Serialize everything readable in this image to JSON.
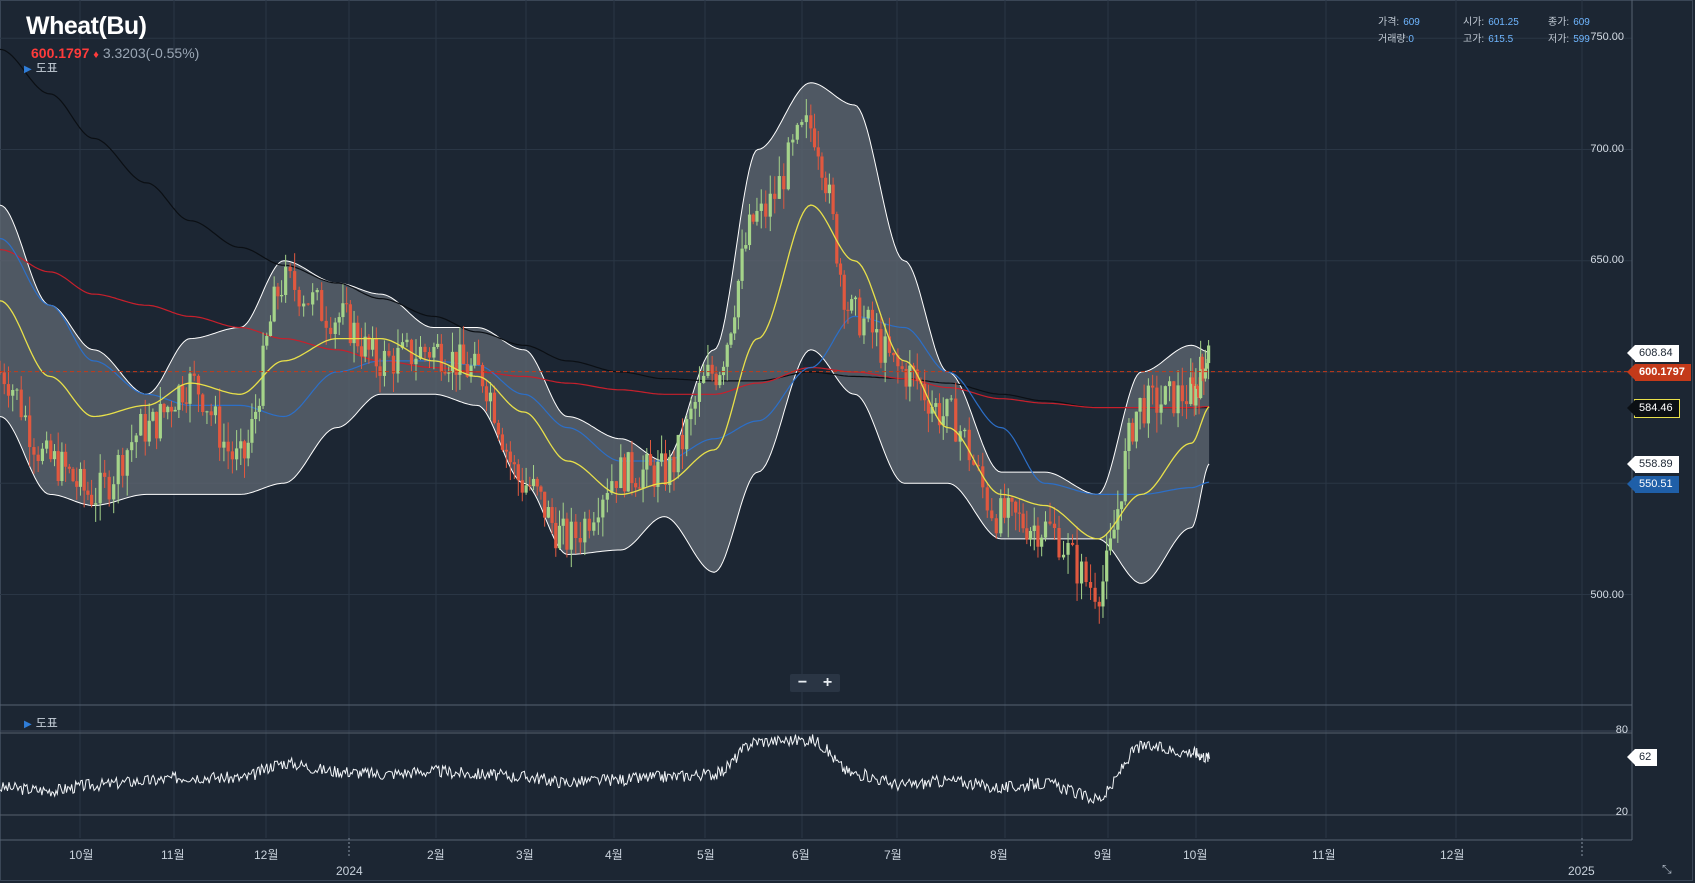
{
  "header": {
    "title": "Wheat(Bu)",
    "price": "600.1797",
    "change_arrow": "♦",
    "change": "3.3203(-0.55%)",
    "toggle_label": "도표"
  },
  "ohlc": {
    "price_label": "가격:",
    "price": "609",
    "open_label": "시가:",
    "open": "601.25",
    "close_label": "종가:",
    "close": "609",
    "volume_label": "거래량:",
    "volume": "0",
    "high_label": "고가:",
    "high": "615.5",
    "low_label": "저가:",
    "low": "599"
  },
  "price_axis": {
    "ticks": [
      "750.00",
      "700.00",
      "650.00",
      "500.00"
    ],
    "tags": {
      "band_upper": "608.84",
      "last_price": "600.1797",
      "ma_long": "584.46",
      "band_lower": "558.89",
      "ma_mid": "550.51"
    }
  },
  "indicator": {
    "toggle_label": "도표",
    "ticks": [
      "80",
      "20"
    ],
    "value": "62"
  },
  "time_axis": {
    "labels": [
      "10월",
      "11월",
      "12월",
      "2024",
      "2월",
      "3월",
      "4월",
      "5월",
      "6월",
      "7월",
      "8월",
      "9월",
      "10월",
      "11월",
      "12월",
      "2025"
    ]
  },
  "zoom": {
    "minus": "−",
    "plus": "+"
  },
  "colors": {
    "background": "#1c2633",
    "up_candle": "#a5d48a",
    "down_candle": "#e1583f",
    "band_fill": "#5d656f",
    "band_edge": "#ffffff",
    "ma_fast": "#e8e04a",
    "ma_blue": "#2c6fc8",
    "ma_red": "#c8202c",
    "ma_black": "#0b0f14",
    "last_price": "#c43a1a"
  },
  "chart_data": {
    "type": "candlestick",
    "title": "Wheat(Bu)",
    "x_range": [
      "2023-09",
      "2025-01"
    ],
    "ylim": [
      480,
      760
    ],
    "grid": true,
    "dates": [
      "2023-09-15",
      "2023-10-01",
      "2023-10-15",
      "2023-11-01",
      "2023-11-15",
      "2023-12-01",
      "2023-12-15",
      "2024-01-01",
      "2024-01-15",
      "2024-02-01",
      "2024-02-15",
      "2024-03-01",
      "2024-03-15",
      "2024-04-01",
      "2024-04-15",
      "2024-05-01",
      "2024-05-15",
      "2024-06-01",
      "2024-06-15",
      "2024-07-01",
      "2024-07-15",
      "2024-08-01",
      "2024-08-15",
      "2024-09-01",
      "2024-09-15",
      "2024-10-01",
      "2024-10-07"
    ],
    "close": [
      600,
      560,
      545,
      575,
      595,
      560,
      640,
      625,
      605,
      610,
      600,
      550,
      525,
      555,
      555,
      600,
      670,
      710,
      625,
      600,
      580,
      535,
      530,
      503,
      585,
      590,
      609
    ],
    "bollinger_upper": [
      675,
      630,
      610,
      590,
      615,
      620,
      650,
      640,
      635,
      620,
      620,
      610,
      580,
      570,
      560,
      610,
      700,
      730,
      720,
      650,
      600,
      555,
      555,
      545,
      600,
      612,
      608.84
    ],
    "bollinger_lower": [
      580,
      545,
      540,
      545,
      545,
      545,
      550,
      575,
      590,
      590,
      585,
      550,
      518,
      520,
      535,
      510,
      555,
      610,
      590,
      550,
      550,
      525,
      525,
      525,
      505,
      530,
      558.89
    ],
    "ma_fast": [
      632,
      598,
      580,
      585,
      595,
      590,
      605,
      615,
      615,
      605,
      598,
      582,
      560,
      545,
      550,
      565,
      615,
      675,
      650,
      605,
      575,
      545,
      540,
      525,
      545,
      568,
      584.46
    ],
    "ma_blue": [
      660,
      630,
      605,
      590,
      585,
      585,
      580,
      600,
      605,
      605,
      603,
      590,
      575,
      560,
      560,
      570,
      578,
      602,
      625,
      620,
      600,
      575,
      550,
      545,
      545,
      548,
      550.51
    ],
    "ma_red": [
      655,
      645,
      635,
      630,
      625,
      620,
      615,
      610,
      605,
      602,
      600,
      598,
      595,
      592,
      590,
      590,
      595,
      602,
      600,
      597,
      593,
      588,
      586,
      584,
      584,
      584,
      584.46
    ],
    "ma_black": [
      745,
      725,
      705,
      685,
      668,
      656,
      648,
      640,
      633,
      625,
      618,
      612,
      605,
      600,
      597,
      596,
      596,
      600,
      598,
      597,
      595,
      590,
      587,
      584,
      584,
      584,
      584
    ],
    "oscillator": {
      "ylim": [
        0,
        100
      ],
      "levels": [
        80,
        20
      ],
      "values": [
        40,
        38,
        42,
        45,
        48,
        47,
        58,
        52,
        50,
        52,
        50,
        48,
        44,
        46,
        48,
        50,
        74,
        75,
        50,
        42,
        45,
        40,
        43,
        32,
        70,
        66,
        62
      ]
    }
  }
}
